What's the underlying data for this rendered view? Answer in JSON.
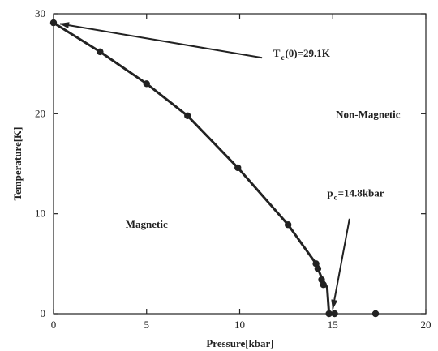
{
  "chart_data": {
    "type": "line",
    "xlabel": "Pressure[kbar]",
    "ylabel": "Temperature[K]",
    "xlim": [
      0,
      20
    ],
    "ylim": [
      0,
      30
    ],
    "x_ticks": [
      0,
      5,
      10,
      15,
      20
    ],
    "y_ticks": [
      0,
      10,
      20,
      30
    ],
    "grid": false,
    "series": [
      {
        "points": [
          {
            "x": 0.0,
            "y": 29.1
          },
          {
            "x": 2.5,
            "y": 26.2
          },
          {
            "x": 5.0,
            "y": 23.0
          },
          {
            "x": 7.2,
            "y": 19.8
          },
          {
            "x": 9.9,
            "y": 14.6
          },
          {
            "x": 12.6,
            "y": 8.9
          },
          {
            "x": 14.1,
            "y": 5.0
          },
          {
            "x": 14.2,
            "y": 4.5
          },
          {
            "x": 14.4,
            "y": 3.4
          },
          {
            "x": 14.5,
            "y": 2.9
          },
          {
            "x": 14.8,
            "y": 0.0
          },
          {
            "x": 15.1,
            "y": 0.0
          },
          {
            "x": 17.3,
            "y": 0.0
          }
        ],
        "curve": [
          {
            "x": 0.0,
            "y": 29.1
          },
          {
            "x": 2.5,
            "y": 26.2
          },
          {
            "x": 5.0,
            "y": 23.0
          },
          {
            "x": 7.2,
            "y": 19.8
          },
          {
            "x": 9.9,
            "y": 14.6
          },
          {
            "x": 12.6,
            "y": 8.9
          },
          {
            "x": 14.1,
            "y": 5.0
          },
          {
            "x": 14.4,
            "y": 3.6
          },
          {
            "x": 14.7,
            "y": 2.6
          },
          {
            "x": 14.8,
            "y": 0.0
          }
        ]
      }
    ],
    "region_labels": [
      {
        "text": "Non-Magnetic",
        "x": 16.9,
        "y": 19.6
      },
      {
        "text": "Magnetic",
        "x": 5.0,
        "y": 8.6
      }
    ],
    "annotations": [
      {
        "main": "T",
        "sub": "c",
        "rest": "(0)=29.1K",
        "text_at": {
          "x": 11.8,
          "y": 25.7
        },
        "tail": {
          "x": 11.2,
          "y": 25.6
        },
        "head": {
          "x": 0.35,
          "y": 29.0
        }
      },
      {
        "main": "p",
        "sub": "c",
        "rest": "=14.8kbar",
        "text_at": {
          "x": 14.7,
          "y": 11.7
        },
        "tail": {
          "x": 15.9,
          "y": 9.5
        },
        "head": {
          "x": 15.0,
          "y": 0.5
        }
      }
    ]
  }
}
